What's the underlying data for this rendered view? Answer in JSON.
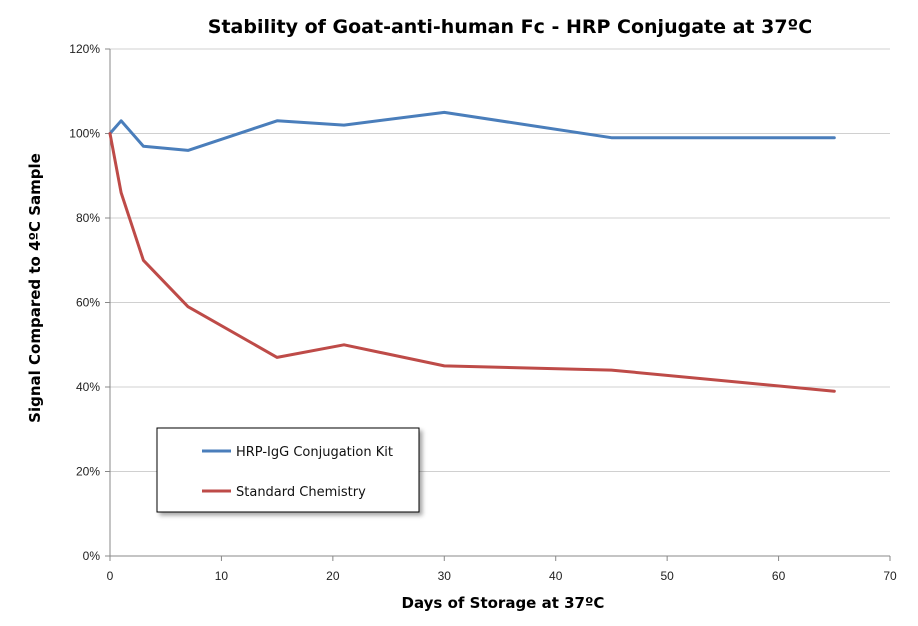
{
  "chart_data": {
    "type": "line",
    "title": "Stability of Goat-anti-human Fc - HRP Conjugate at 37ºC",
    "xlabel": "Days of Storage at 37ºC",
    "ylabel": "Signal Compared to 4ºC Sample",
    "xlim": [
      0,
      70
    ],
    "ylim": [
      0,
      120
    ],
    "x_ticks": [
      0,
      10,
      20,
      30,
      40,
      50,
      60,
      70
    ],
    "y_ticks": [
      0,
      20,
      40,
      60,
      80,
      100,
      120
    ],
    "y_tick_suffix": "%",
    "grid": {
      "horizontal": true,
      "vertical": false,
      "color": "#d0d0d0"
    },
    "legend": {
      "placement": "lower-left"
    },
    "series": [
      {
        "name": "HRP-IgG Conjugation Kit",
        "color": "#4a7ebb",
        "points": [
          {
            "x": 0,
            "y": 100
          },
          {
            "x": 1,
            "y": 103
          },
          {
            "x": 3,
            "y": 97
          },
          {
            "x": 7,
            "y": 96
          },
          {
            "x": 15,
            "y": 103
          },
          {
            "x": 21,
            "y": 102
          },
          {
            "x": 30,
            "y": 105
          },
          {
            "x": 45,
            "y": 99
          },
          {
            "x": 65,
            "y": 99
          }
        ]
      },
      {
        "name": "Standard Chemistry",
        "color": "#be4b48",
        "points": [
          {
            "x": 0,
            "y": 100
          },
          {
            "x": 1,
            "y": 86
          },
          {
            "x": 3,
            "y": 70
          },
          {
            "x": 7,
            "y": 59
          },
          {
            "x": 15,
            "y": 47
          },
          {
            "x": 21,
            "y": 50
          },
          {
            "x": 30,
            "y": 45
          },
          {
            "x": 45,
            "y": 44
          },
          {
            "x": 65,
            "y": 39
          }
        ]
      }
    ]
  }
}
